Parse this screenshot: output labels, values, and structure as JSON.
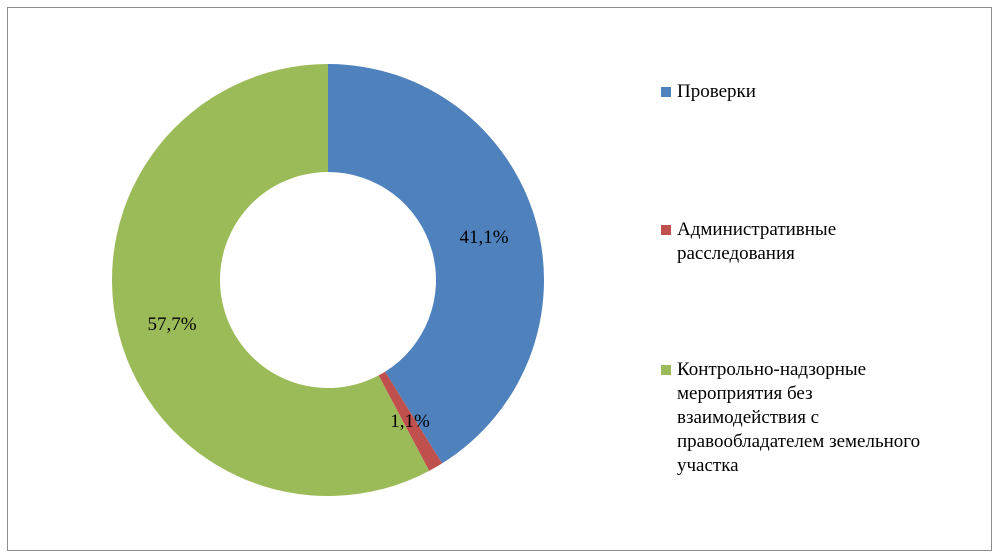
{
  "chart_data": {
    "type": "pie",
    "style": "donut",
    "title": "",
    "categories": [
      "Проверки",
      "Административные расследования",
      "Контрольно-надзорные мероприятия без взаимодействия с правообладателем земельного участка"
    ],
    "values": [
      41.1,
      1.1,
      57.7
    ],
    "data_labels": [
      "41,1%",
      "1,1%",
      "57,7%"
    ],
    "colors": [
      "#4f81bd",
      "#c0504d",
      "#9bbb59"
    ],
    "legend_position": "right",
    "legend_lines": [
      "Проверки",
      "Административные\nрасследования",
      "Контрольно-надзорные\nмероприятия без\nвзаимодействия с\nправообладателем земельного\nучастка"
    ]
  }
}
